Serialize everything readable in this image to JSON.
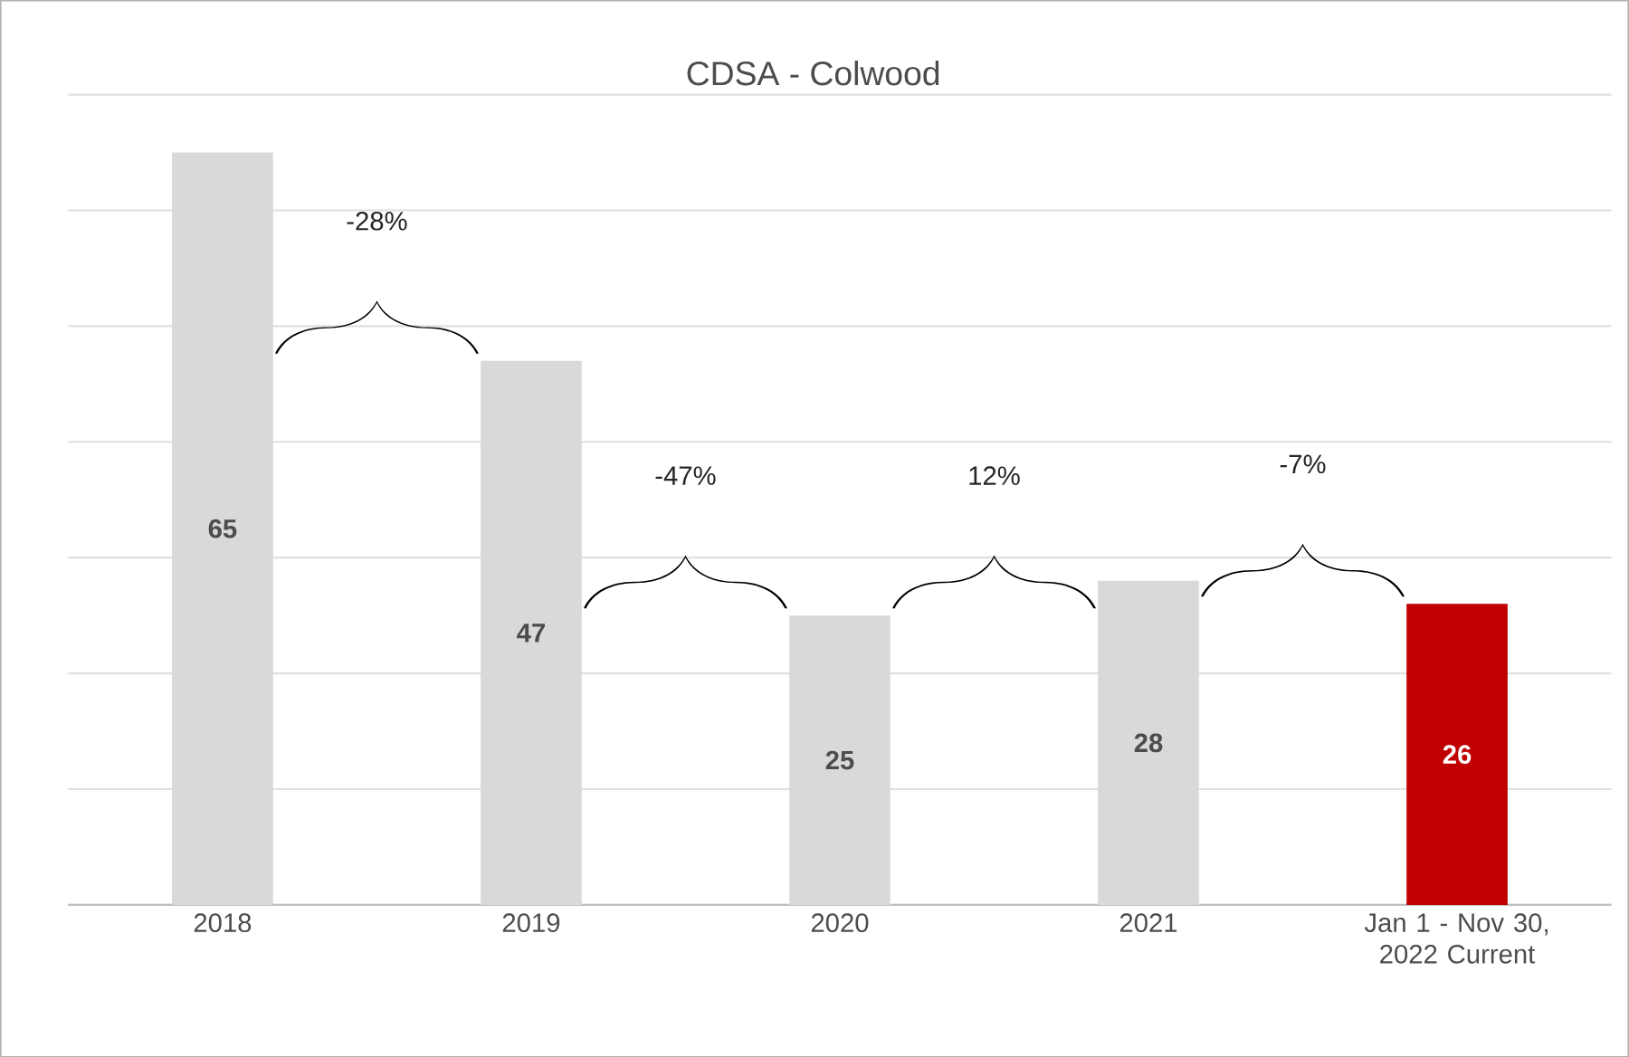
{
  "chart_data": {
    "type": "bar",
    "title": "CDSA - Colwood",
    "categories": [
      "2018",
      "2019",
      "2020",
      "2021",
      "Jan 1 - Nov 30, 2022 Current"
    ],
    "values": [
      65,
      47,
      25,
      28,
      26
    ],
    "colors": [
      "#d9d9d9",
      "#d9d9d9",
      "#d9d9d9",
      "#d9d9d9",
      "#c00000"
    ],
    "data_labels": true,
    "tick_labels": "x",
    "grid": "y",
    "legend": false,
    "annotations": [
      "-28%",
      "-47%",
      "12%",
      "-7%"
    ]
  }
}
